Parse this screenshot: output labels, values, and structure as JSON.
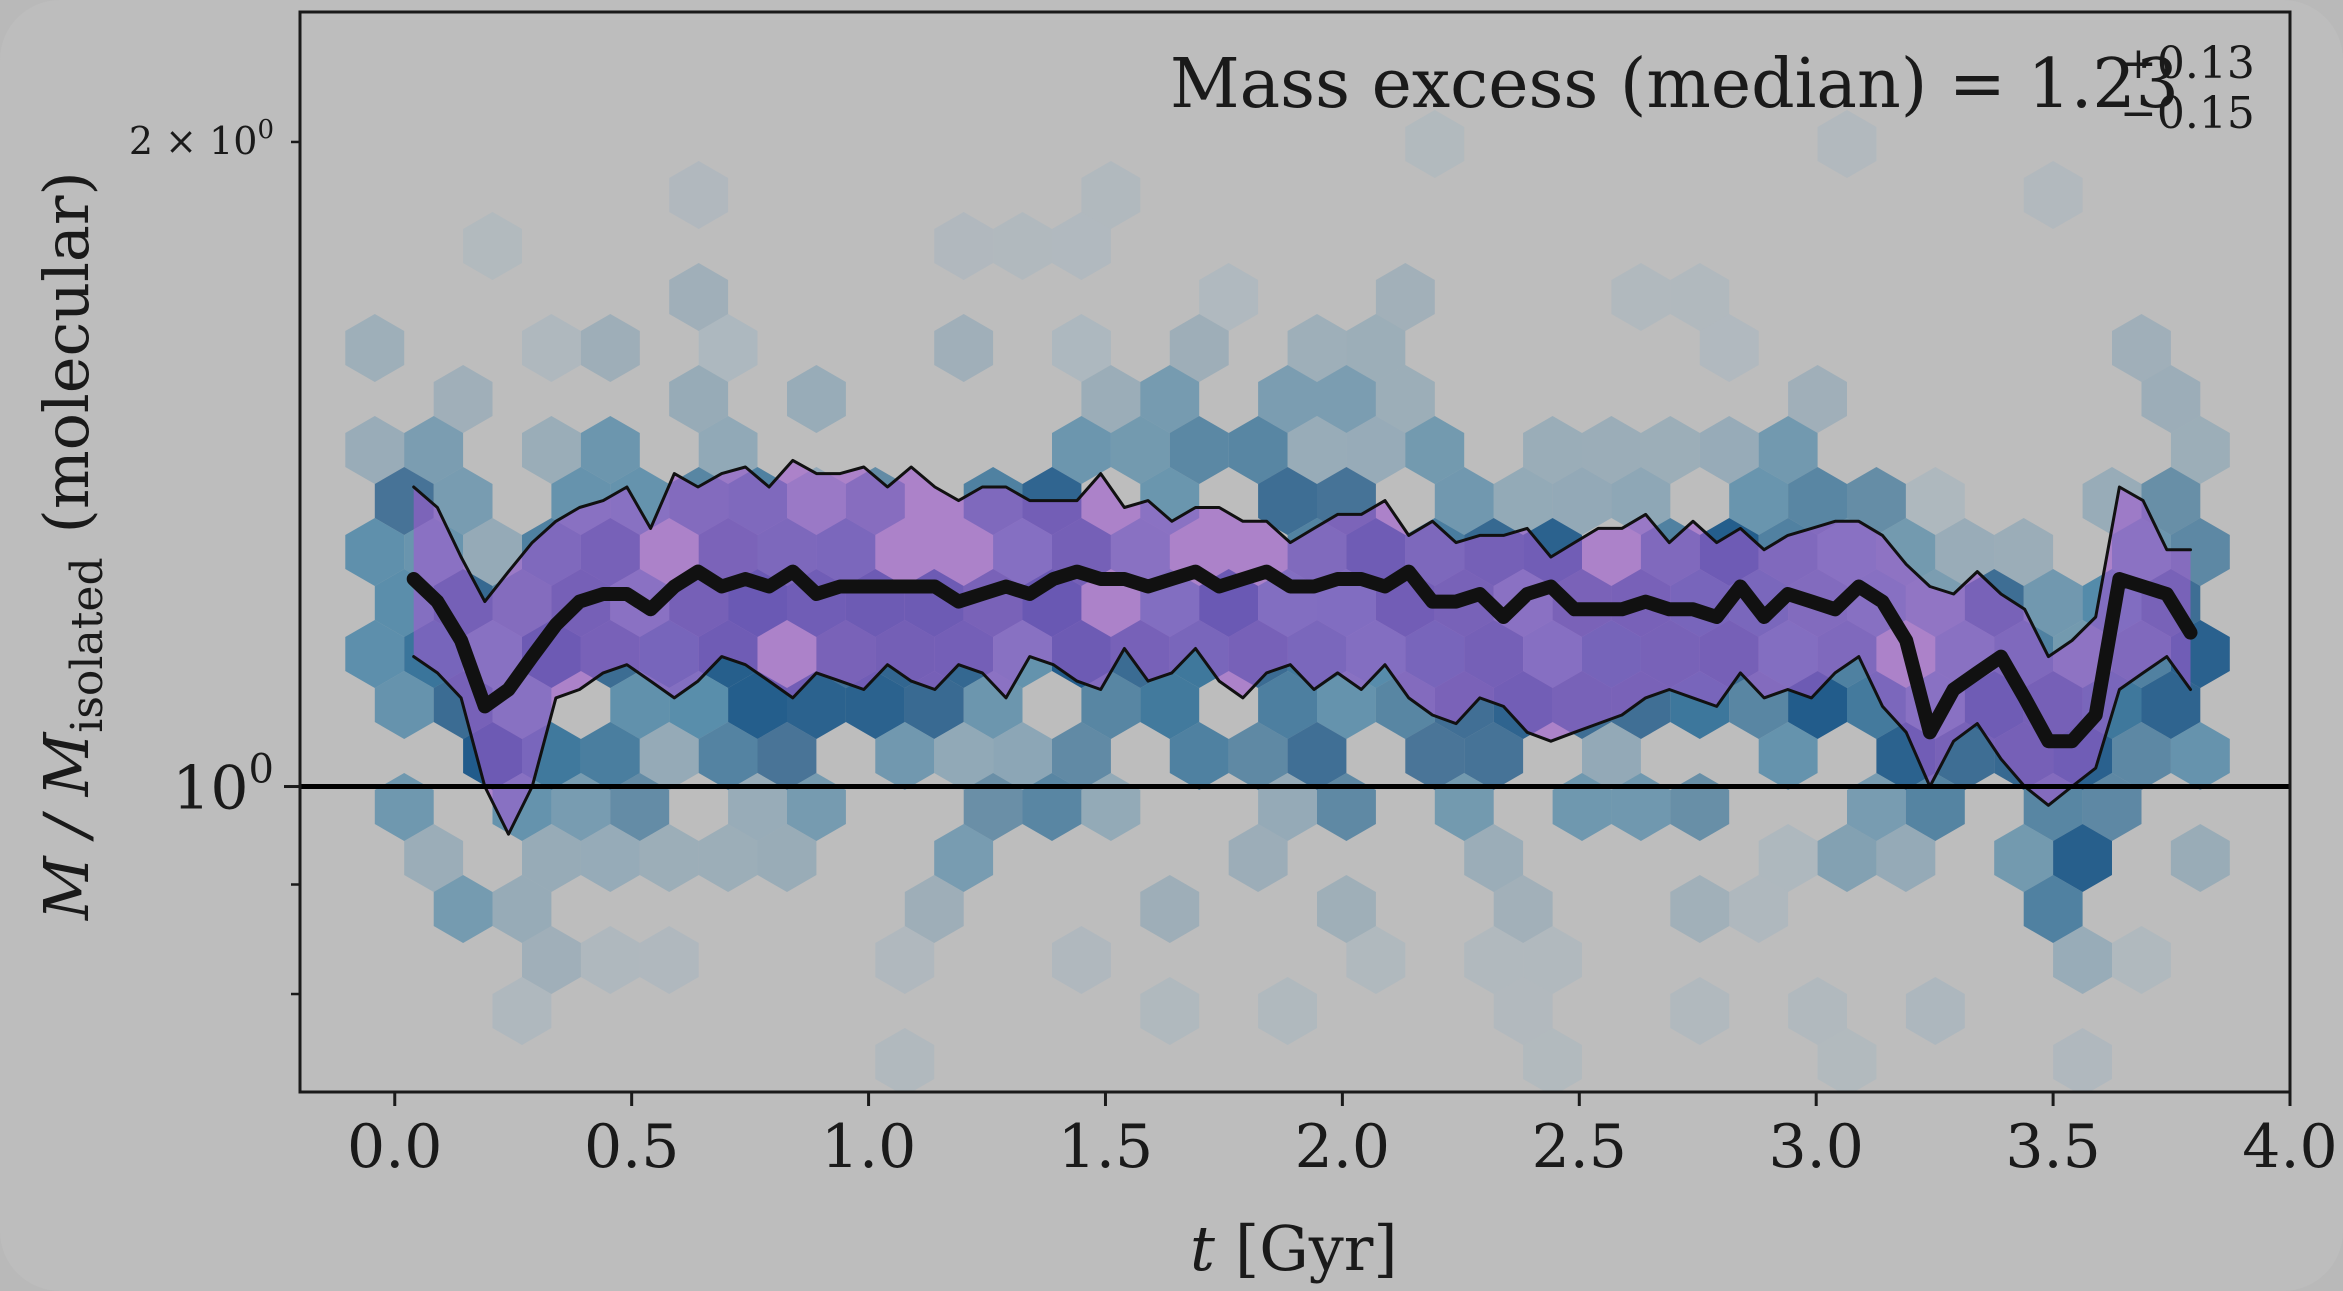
{
  "chart_data": {
    "type": "line",
    "annotation": {
      "text": "Mass excess (median) = 1.23",
      "sup": "+0.13",
      "sub": "−0.15"
    },
    "xlabel_var": "t",
    "xlabel_unit": "[Gyr]",
    "ylabel_var": "M / M",
    "ylabel_sub": "isolated",
    "ylabel_suffix": "(molecular)",
    "xlim": [
      -0.2,
      4.0
    ],
    "ylim": [
      0.72,
      2.3
    ],
    "yscale": "log",
    "grid": false,
    "x_ticks": [
      {
        "v": 0.0,
        "label": "0.0"
      },
      {
        "v": 0.5,
        "label": "0.5"
      },
      {
        "v": 1.0,
        "label": "1.0"
      },
      {
        "v": 1.5,
        "label": "1.5"
      },
      {
        "v": 2.0,
        "label": "2.0"
      },
      {
        "v": 2.5,
        "label": "2.5"
      },
      {
        "v": 3.0,
        "label": "3.0"
      },
      {
        "v": 3.5,
        "label": "3.5"
      },
      {
        "v": 4.0,
        "label": "4.0"
      }
    ],
    "y_major_ticks": [
      {
        "v": 1.0,
        "base": "10",
        "exp": "0"
      }
    ],
    "y_minor_label": {
      "v": 2.0,
      "pre": "2 × 10",
      "exp": "0"
    },
    "y_minor_ticks": [
      0.8,
      0.9,
      2.0
    ],
    "reference_line": {
      "y": 1.0
    },
    "colors": {
      "band": "#a05ad0",
      "median": "#111111",
      "bounds": "#111111",
      "hex_dark": "#0d4f84",
      "hex_mid": "#4a86a8",
      "hex_light": "#9fb3c0",
      "background": "#bdbdbd"
    },
    "series": [
      {
        "role": "median",
        "x": [
          0.04,
          0.09,
          0.14,
          0.19,
          0.24,
          0.29,
          0.34,
          0.39,
          0.44,
          0.49,
          0.54,
          0.59,
          0.64,
          0.69,
          0.74,
          0.79,
          0.84,
          0.89,
          0.94,
          0.99,
          1.04,
          1.09,
          1.14,
          1.19,
          1.24,
          1.29,
          1.34,
          1.39,
          1.44,
          1.49,
          1.54,
          1.59,
          1.64,
          1.69,
          1.74,
          1.79,
          1.84,
          1.89,
          1.94,
          1.99,
          2.04,
          2.09,
          2.14,
          2.19,
          2.24,
          2.29,
          2.34,
          2.39,
          2.44,
          2.49,
          2.54,
          2.59,
          2.64,
          2.69,
          2.74,
          2.79,
          2.84,
          2.89,
          2.94,
          2.99,
          3.04,
          3.09,
          3.14,
          3.19,
          3.24,
          3.29,
          3.34,
          3.39,
          3.44,
          3.49,
          3.54,
          3.59,
          3.64,
          3.69,
          3.74,
          3.79
        ],
        "values": [
          1.25,
          1.22,
          1.17,
          1.09,
          1.11,
          1.15,
          1.19,
          1.22,
          1.23,
          1.23,
          1.21,
          1.24,
          1.26,
          1.24,
          1.25,
          1.24,
          1.26,
          1.23,
          1.24,
          1.24,
          1.24,
          1.24,
          1.24,
          1.22,
          1.23,
          1.24,
          1.23,
          1.25,
          1.26,
          1.25,
          1.25,
          1.24,
          1.25,
          1.26,
          1.24,
          1.25,
          1.26,
          1.24,
          1.24,
          1.25,
          1.25,
          1.24,
          1.26,
          1.22,
          1.22,
          1.23,
          1.2,
          1.23,
          1.24,
          1.21,
          1.21,
          1.21,
          1.22,
          1.21,
          1.21,
          1.2,
          1.24,
          1.2,
          1.23,
          1.22,
          1.21,
          1.24,
          1.22,
          1.17,
          1.06,
          1.11,
          1.13,
          1.15,
          1.1,
          1.05,
          1.05,
          1.08,
          1.25,
          1.24,
          1.23,
          1.18
        ]
      },
      {
        "role": "upper",
        "x": [
          0.04,
          0.09,
          0.14,
          0.19,
          0.24,
          0.29,
          0.34,
          0.39,
          0.44,
          0.49,
          0.54,
          0.59,
          0.64,
          0.69,
          0.74,
          0.79,
          0.84,
          0.89,
          0.94,
          0.99,
          1.04,
          1.09,
          1.14,
          1.19,
          1.24,
          1.29,
          1.34,
          1.39,
          1.44,
          1.49,
          1.54,
          1.59,
          1.64,
          1.69,
          1.74,
          1.79,
          1.84,
          1.89,
          1.94,
          1.99,
          2.04,
          2.09,
          2.14,
          2.19,
          2.24,
          2.29,
          2.34,
          2.39,
          2.44,
          2.49,
          2.54,
          2.59,
          2.64,
          2.69,
          2.74,
          2.79,
          2.84,
          2.89,
          2.94,
          2.99,
          3.04,
          3.09,
          3.14,
          3.19,
          3.24,
          3.29,
          3.34,
          3.39,
          3.44,
          3.49,
          3.54,
          3.59,
          3.64,
          3.69,
          3.74,
          3.79
        ],
        "values": [
          1.38,
          1.35,
          1.28,
          1.22,
          1.26,
          1.3,
          1.33,
          1.35,
          1.36,
          1.38,
          1.32,
          1.4,
          1.38,
          1.4,
          1.41,
          1.38,
          1.42,
          1.4,
          1.4,
          1.41,
          1.38,
          1.41,
          1.38,
          1.36,
          1.38,
          1.38,
          1.36,
          1.36,
          1.36,
          1.4,
          1.35,
          1.36,
          1.33,
          1.35,
          1.35,
          1.33,
          1.33,
          1.3,
          1.32,
          1.34,
          1.34,
          1.36,
          1.31,
          1.33,
          1.3,
          1.31,
          1.31,
          1.32,
          1.28,
          1.3,
          1.32,
          1.32,
          1.34,
          1.3,
          1.33,
          1.3,
          1.32,
          1.29,
          1.31,
          1.32,
          1.33,
          1.33,
          1.31,
          1.27,
          1.24,
          1.23,
          1.26,
          1.23,
          1.21,
          1.15,
          1.17,
          1.2,
          1.38,
          1.36,
          1.29,
          1.29
        ]
      },
      {
        "role": "lower",
        "x": [
          0.04,
          0.09,
          0.14,
          0.19,
          0.24,
          0.29,
          0.34,
          0.39,
          0.44,
          0.49,
          0.54,
          0.59,
          0.64,
          0.69,
          0.74,
          0.79,
          0.84,
          0.89,
          0.94,
          0.99,
          1.04,
          1.09,
          1.14,
          1.19,
          1.24,
          1.29,
          1.34,
          1.39,
          1.44,
          1.49,
          1.54,
          1.59,
          1.64,
          1.69,
          1.74,
          1.79,
          1.84,
          1.89,
          1.94,
          1.99,
          2.04,
          2.09,
          2.14,
          2.19,
          2.24,
          2.29,
          2.34,
          2.39,
          2.44,
          2.49,
          2.54,
          2.59,
          2.64,
          2.69,
          2.74,
          2.79,
          2.84,
          2.89,
          2.94,
          2.99,
          3.04,
          3.09,
          3.14,
          3.19,
          3.24,
          3.29,
          3.34,
          3.39,
          3.44,
          3.49,
          3.54,
          3.59,
          3.64,
          3.69,
          3.74,
          3.79
        ],
        "values": [
          1.15,
          1.13,
          1.1,
          1.0,
          0.95,
          1.0,
          1.1,
          1.11,
          1.13,
          1.14,
          1.12,
          1.1,
          1.12,
          1.15,
          1.14,
          1.12,
          1.1,
          1.13,
          1.12,
          1.11,
          1.14,
          1.12,
          1.11,
          1.14,
          1.13,
          1.1,
          1.15,
          1.14,
          1.12,
          1.11,
          1.16,
          1.12,
          1.13,
          1.16,
          1.12,
          1.1,
          1.13,
          1.14,
          1.11,
          1.13,
          1.11,
          1.14,
          1.1,
          1.08,
          1.07,
          1.1,
          1.09,
          1.06,
          1.05,
          1.06,
          1.07,
          1.08,
          1.1,
          1.11,
          1.1,
          1.09,
          1.13,
          1.1,
          1.11,
          1.1,
          1.13,
          1.15,
          1.09,
          1.06,
          1.0,
          1.05,
          1.07,
          1.03,
          1.0,
          0.98,
          1.0,
          1.02,
          1.11,
          1.13,
          1.15,
          1.11
        ]
      }
    ]
  }
}
